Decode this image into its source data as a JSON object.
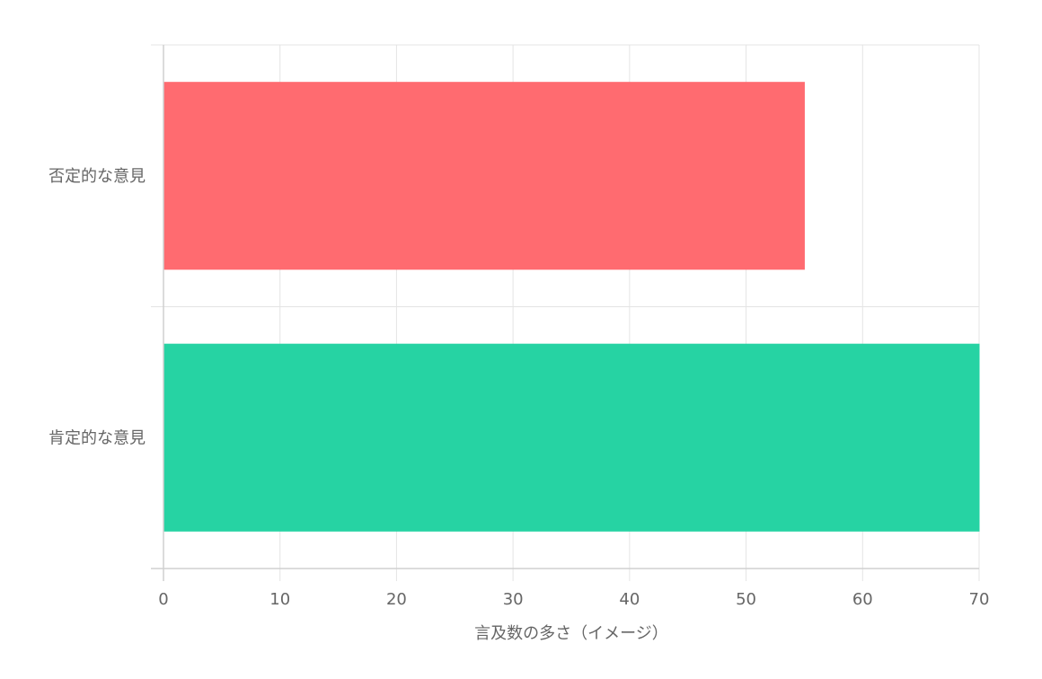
{
  "chart_data": {
    "type": "bar",
    "orientation": "horizontal",
    "categories": [
      "否定的な意見",
      "肯定的な意見"
    ],
    "values": [
      55,
      70
    ],
    "colors": [
      "#ff6b70",
      "#26d3a3"
    ],
    "title": "",
    "xlabel": "言及数の多さ（イメージ）",
    "ylabel": "",
    "xlim": [
      0,
      70
    ],
    "xticks": [
      0,
      10,
      20,
      30,
      40,
      50,
      60,
      70
    ],
    "grid": true,
    "legend": "none"
  }
}
